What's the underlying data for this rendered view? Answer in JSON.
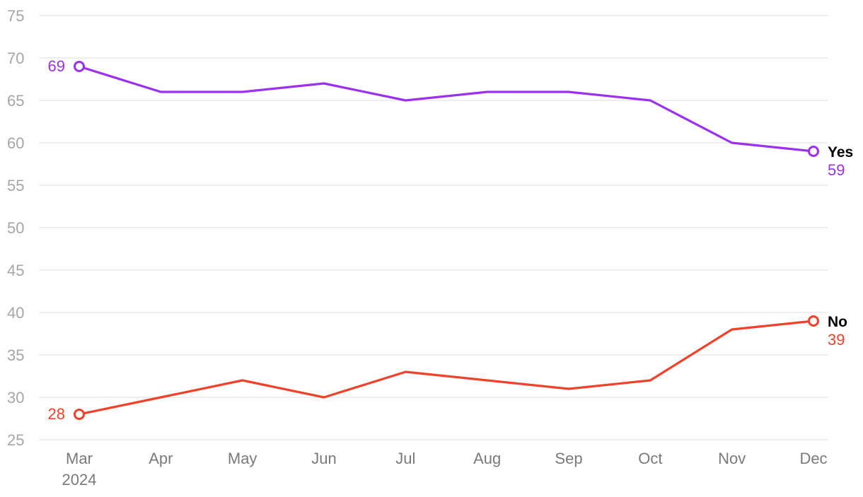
{
  "chart_data": {
    "type": "line",
    "categories": [
      "Mar",
      "Apr",
      "May",
      "Jun",
      "Jul",
      "Aug",
      "Sep",
      "Oct",
      "Nov",
      "Dec"
    ],
    "year_label": "2024",
    "ylim": [
      25,
      75
    ],
    "yticks": [
      25,
      30,
      35,
      40,
      45,
      50,
      55,
      60,
      65,
      70,
      75
    ],
    "grid": true,
    "series": [
      {
        "name": "Yes",
        "color": "#9b30f0",
        "values": [
          69,
          66,
          66,
          67,
          65,
          66,
          66,
          65,
          60,
          59
        ],
        "start_label": "69",
        "end_label": "59"
      },
      {
        "name": "No",
        "color": "#f0412a",
        "values": [
          28,
          30,
          32,
          30,
          33,
          32,
          31,
          32,
          38,
          39
        ],
        "start_label": "28",
        "end_label": "39"
      }
    ]
  }
}
